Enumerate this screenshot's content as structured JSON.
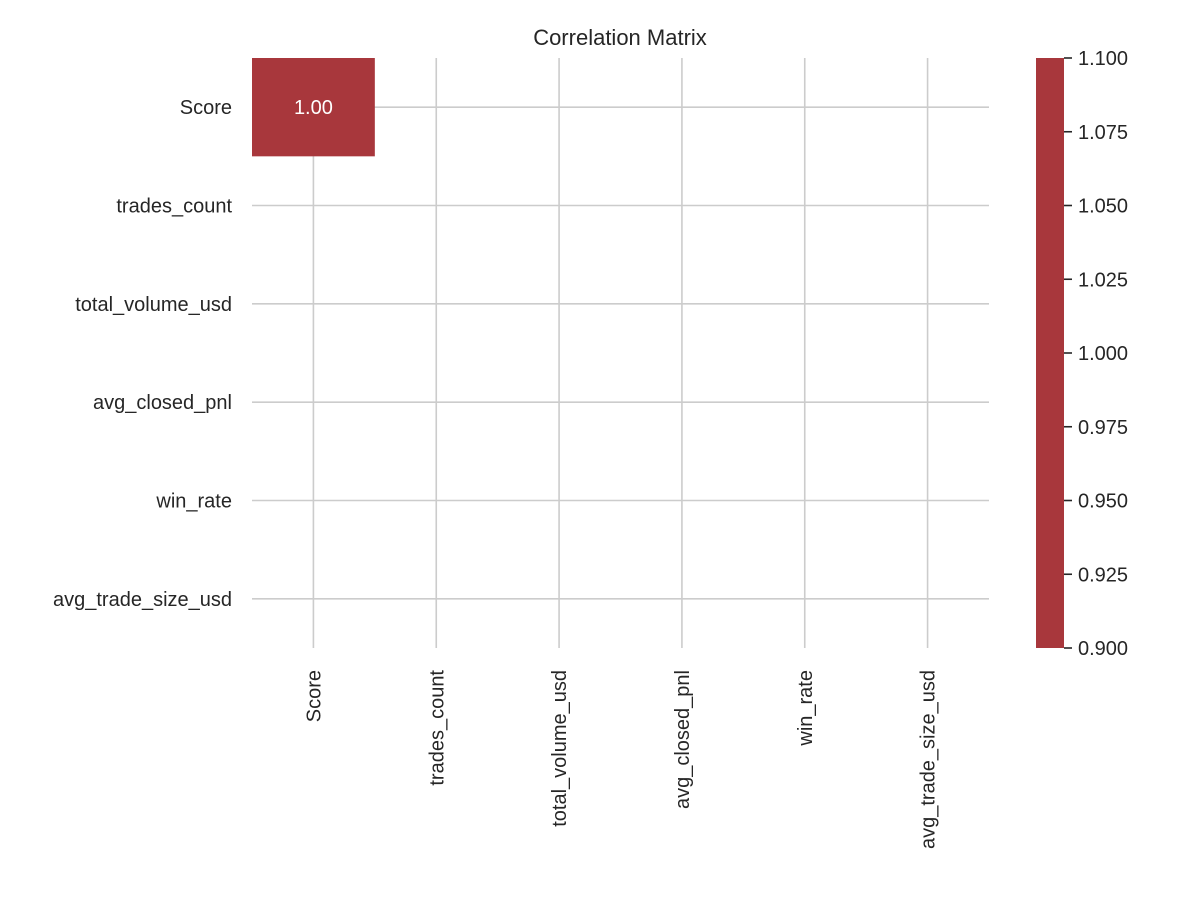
{
  "chart_data": {
    "type": "heatmap",
    "title": "Correlation Matrix",
    "rows": [
      "Score",
      "trades_count",
      "total_volume_usd",
      "avg_closed_pnl",
      "win_rate",
      "avg_trade_size_usd"
    ],
    "columns": [
      "Score",
      "trades_count",
      "total_volume_usd",
      "avg_closed_pnl",
      "win_rate",
      "avg_trade_size_usd"
    ],
    "values": [
      [
        1.0,
        null,
        null,
        null,
        null,
        null
      ],
      [
        null,
        null,
        null,
        null,
        null,
        null
      ],
      [
        null,
        null,
        null,
        null,
        null,
        null
      ],
      [
        null,
        null,
        null,
        null,
        null,
        null
      ],
      [
        null,
        null,
        null,
        null,
        null,
        null
      ],
      [
        null,
        null,
        null,
        null,
        null,
        null
      ]
    ],
    "annotations": [
      {
        "row": 0,
        "col": 0,
        "text": "1.00"
      }
    ],
    "cell_color": "#a8373c",
    "colorbar": {
      "range": [
        0.9,
        1.1
      ],
      "ticks": [
        "1.100",
        "1.075",
        "1.050",
        "1.025",
        "1.000",
        "0.975",
        "0.950",
        "0.925",
        "0.900"
      ],
      "color": "#a8373c"
    },
    "grid": true,
    "xtick_rotation": "vertical"
  }
}
